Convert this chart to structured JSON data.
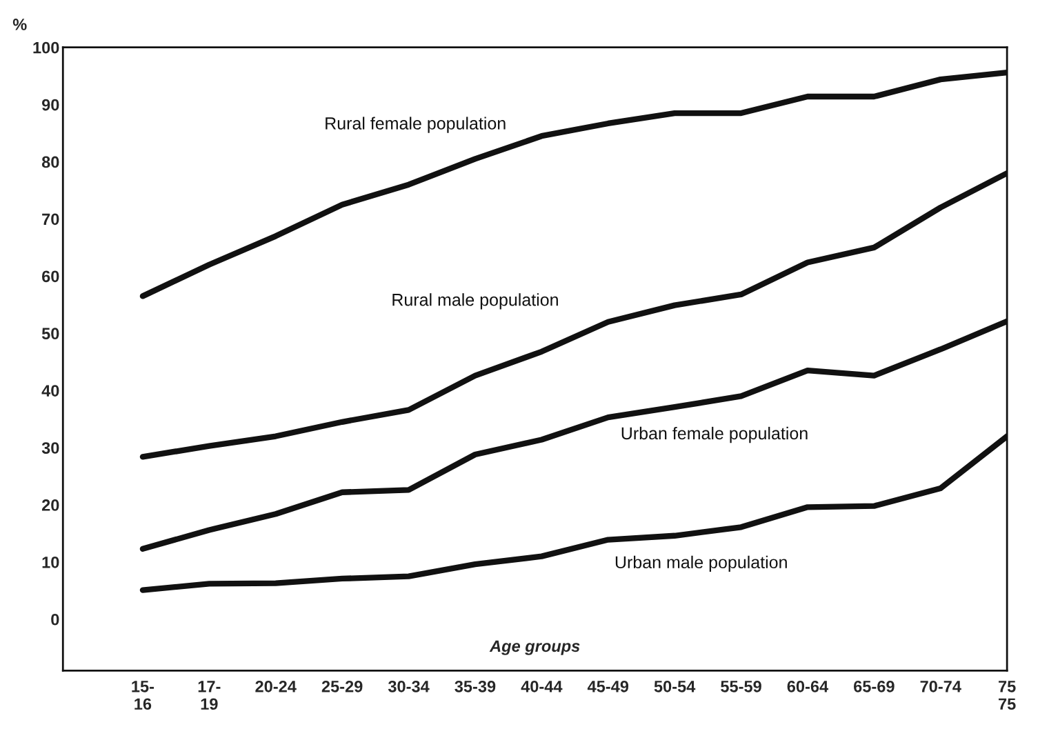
{
  "chart_data": {
    "type": "line",
    "ylabel": "%",
    "xlabel": "Age groups",
    "categories": [
      "15-\n16",
      "17-\n19",
      "20-24",
      "25-29",
      "30-34",
      "35-39",
      "40-44",
      "45-49",
      "50-54",
      "55-59",
      "60-64",
      "65-69",
      "70-74",
      "75\n75"
    ],
    "ylim": [
      -9,
      100
    ],
    "yticks": [
      0,
      10,
      20,
      30,
      40,
      50,
      60,
      70,
      80,
      90,
      100
    ],
    "grid": false,
    "legend": false,
    "marker": "none",
    "line_style": "solid",
    "series": [
      {
        "name": "Rural female population",
        "color": "#111111",
        "values": [
          56.5,
          62,
          67,
          72.5,
          76,
          80.5,
          84.5,
          86.7,
          88.5,
          88.5,
          91.4,
          91.4,
          94.4,
          95.6
        ]
      },
      {
        "name": "Rural male population",
        "color": "#111111",
        "values": [
          28.4,
          30.3,
          32,
          34.5,
          36.6,
          42.6,
          46.8,
          52,
          54.9,
          56.8,
          62.4,
          65,
          72,
          78
        ]
      },
      {
        "name": "Urban female population",
        "color": "#111111",
        "values": [
          12.3,
          15.6,
          18.4,
          22.2,
          22.6,
          28.8,
          31.4,
          35.3,
          37.1,
          39,
          43.5,
          42.6,
          47.2,
          52.1
        ]
      },
      {
        "name": "Urban male population",
        "color": "#111111",
        "values": [
          5.1,
          6.2,
          6.3,
          7.1,
          7.5,
          9.6,
          11,
          13.9,
          14.6,
          16.1,
          19.6,
          19.8,
          22.9,
          32
        ]
      }
    ]
  }
}
